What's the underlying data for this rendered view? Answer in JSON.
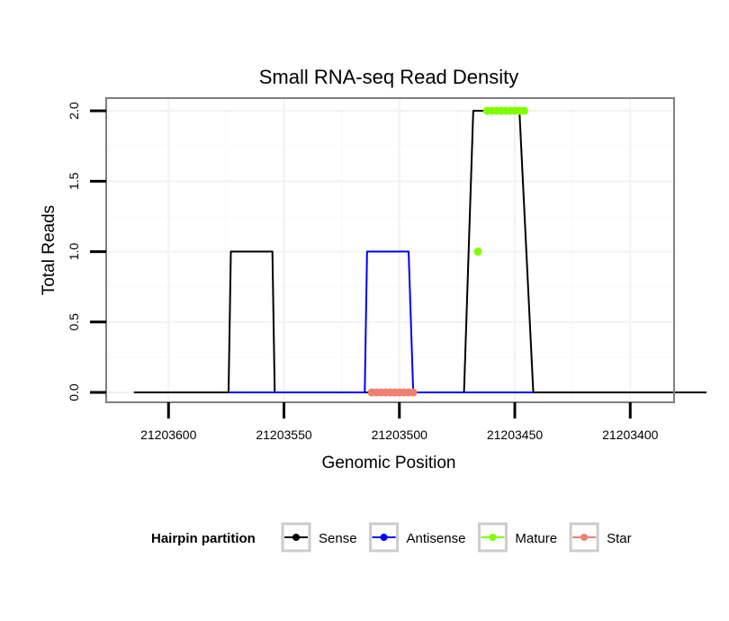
{
  "chart_data": {
    "type": "line",
    "title": "Small RNA-seq Read Density",
    "xlabel": "Genomic Position",
    "ylabel": "Total Reads",
    "x_reversed": true,
    "xlim": [
      21203627,
      21203381
    ],
    "ylim": [
      -0.07,
      2.09
    ],
    "x_ticks": [
      21203600,
      21203550,
      21203500,
      21203450,
      21203400
    ],
    "x_tick_labels": [
      "21203600",
      "21203550",
      "21203500",
      "21203450",
      "21203400"
    ],
    "y_ticks": [
      0,
      0.5,
      1,
      1.5,
      2
    ],
    "y_tick_labels": [
      "0.0",
      "0.5",
      "1.0",
      "1.5",
      "2.0"
    ],
    "grid": true,
    "legend": {
      "title": "Hairpin partition",
      "position": "bottom",
      "entries": [
        {
          "label": "Sense",
          "color": "#000000"
        },
        {
          "label": "Antisense",
          "color": "#0000ff"
        },
        {
          "label": "Mature",
          "color": "#7fff00"
        },
        {
          "label": "Star",
          "color": "#f08070"
        }
      ]
    },
    "series": [
      {
        "name": "Sense",
        "color": "#000000",
        "style": "line",
        "points": [
          [
            21203615,
            0
          ],
          [
            21203574,
            0
          ],
          [
            21203573,
            1
          ],
          [
            21203555,
            1
          ],
          [
            21203554,
            0
          ],
          [
            21203472,
            0
          ],
          [
            21203468,
            2
          ],
          [
            21203464,
            2
          ],
          [
            21203455,
            2
          ],
          [
            21203448,
            2
          ],
          [
            21203445,
            1
          ],
          [
            21203442,
            0
          ],
          [
            21203367,
            0
          ]
        ]
      },
      {
        "name": "Antisense",
        "color": "#0000ff",
        "style": "line",
        "points": [
          [
            21203574,
            0
          ],
          [
            21203554,
            0
          ],
          [
            21203515,
            0
          ],
          [
            21203514,
            1
          ],
          [
            21203496,
            1
          ],
          [
            21203494,
            0
          ],
          [
            21203468,
            0
          ],
          [
            21203442,
            0
          ]
        ]
      },
      {
        "name": "Mature",
        "color": "#7fff00",
        "style": "points",
        "points": [
          [
            21203466,
            1
          ],
          [
            21203462,
            2
          ],
          [
            21203460,
            2
          ],
          [
            21203458,
            2
          ],
          [
            21203456,
            2
          ],
          [
            21203454,
            2
          ],
          [
            21203452,
            2
          ],
          [
            21203450,
            2
          ],
          [
            21203448,
            2
          ],
          [
            21203446,
            2
          ]
        ]
      },
      {
        "name": "Star",
        "color": "#f08070",
        "style": "points",
        "points": [
          [
            21203512,
            0
          ],
          [
            21203510,
            0
          ],
          [
            21203508,
            0
          ],
          [
            21203506,
            0
          ],
          [
            21203504,
            0
          ],
          [
            21203502,
            0
          ],
          [
            21203500,
            0
          ],
          [
            21203498,
            0
          ],
          [
            21203496,
            0
          ],
          [
            21203494,
            0
          ]
        ]
      }
    ]
  }
}
